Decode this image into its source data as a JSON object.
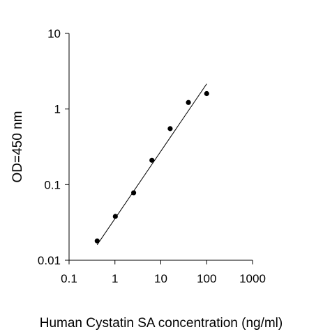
{
  "chart_data": {
    "type": "scatter",
    "title": "",
    "xlabel": "Human Cystatin SA concentration (ng/ml)",
    "ylabel": "OD=450 nm",
    "x_scale": "log",
    "y_scale": "log",
    "xlim": [
      0.1,
      1000
    ],
    "ylim": [
      0.01,
      10
    ],
    "x_ticks": [
      "0.1",
      "1",
      "10",
      "100",
      "1000"
    ],
    "y_ticks": [
      "0.01",
      "0.1",
      "1",
      "10"
    ],
    "grid": false,
    "legend": "none",
    "series": [
      {
        "x": [
          0.41,
          1.02,
          2.56,
          6.4,
          16,
          40,
          100
        ],
        "y": [
          0.018,
          0.038,
          0.078,
          0.21,
          0.55,
          1.22,
          1.6
        ]
      }
    ],
    "fit_line": {
      "x": [
        0.41,
        100
      ],
      "y": [
        0.016,
        2.15
      ]
    },
    "colors": {
      "points": "#000000",
      "line": "#000000"
    }
  }
}
